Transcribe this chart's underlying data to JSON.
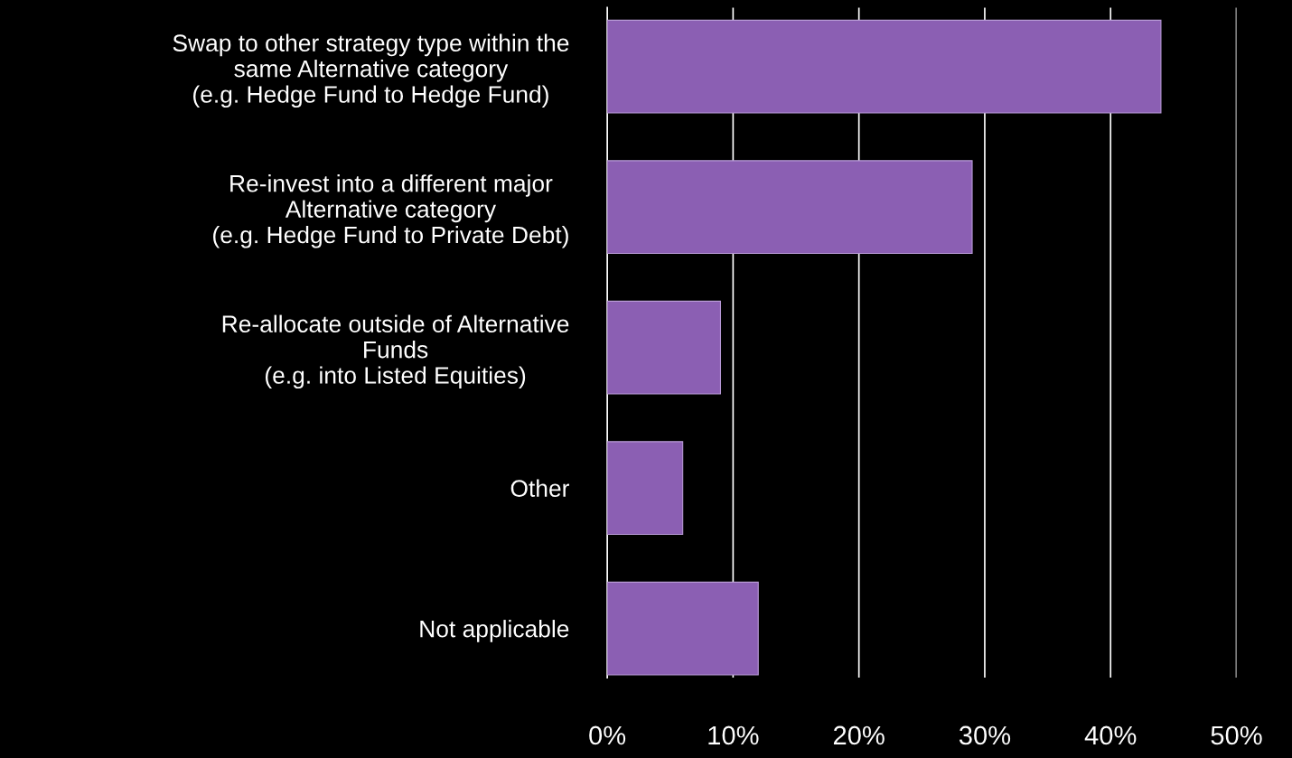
{
  "chart_data": {
    "type": "bar",
    "orientation": "horizontal",
    "categories": [
      "Swap to other strategy type within the\nsame Alternative category\n(e.g. Hedge Fund to Hedge Fund)",
      "Re-invest into a different major\nAlternative category\n(e.g. Hedge Fund to Private Debt)",
      "Re-allocate outside of Alternative\nFunds\n(e.g. into Listed Equities)",
      "Other",
      "Not applicable"
    ],
    "values": [
      44,
      29,
      9,
      6,
      12
    ],
    "color": "#8b5fb3",
    "xlim": [
      0,
      50
    ],
    "xticks": [
      {
        "value": 0,
        "label": "0%"
      },
      {
        "value": 10,
        "label": "10%"
      },
      {
        "value": 20,
        "label": "20%"
      },
      {
        "value": 30,
        "label": "30%"
      },
      {
        "value": 40,
        "label": "40%"
      },
      {
        "value": 50,
        "label": "50%"
      }
    ],
    "grid": "x"
  }
}
